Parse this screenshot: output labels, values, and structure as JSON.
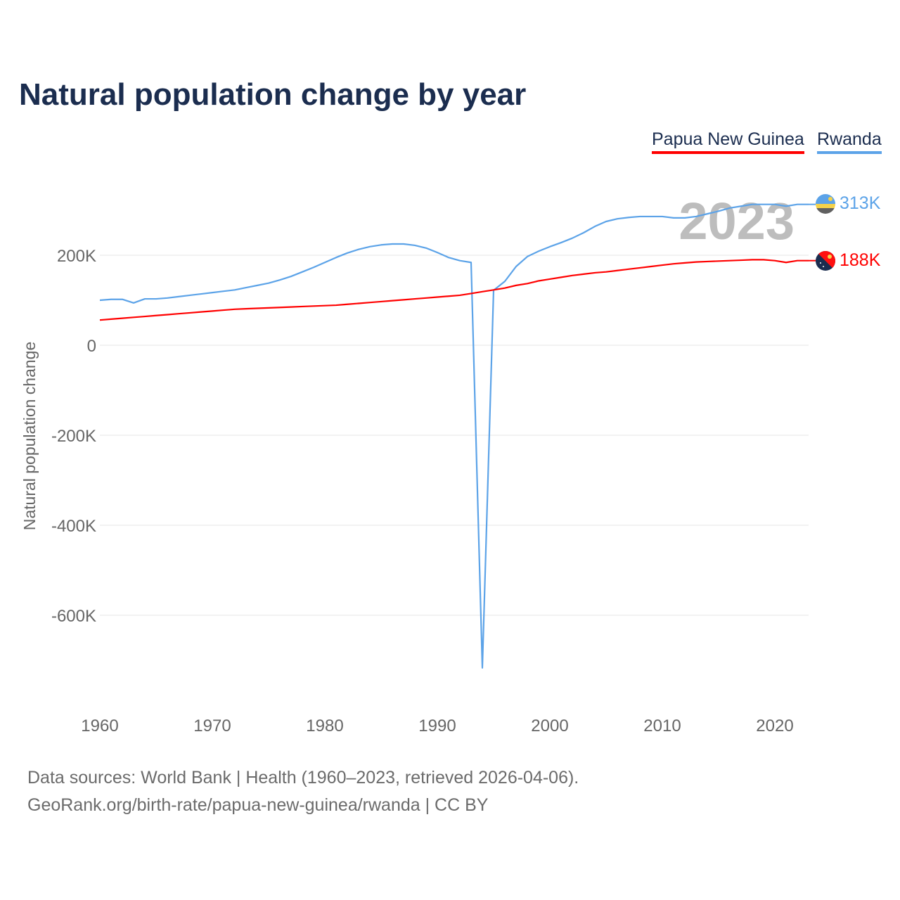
{
  "title": "Natural population change by year",
  "legend": [
    {
      "name": "Papua New Guinea",
      "color": "#ff0000"
    },
    {
      "name": "Rwanda",
      "color": "#5ca3e8"
    }
  ],
  "year_label": "2023",
  "end_labels": {
    "rwanda": "313K",
    "png": "188K"
  },
  "footer": {
    "line1": "Data sources: World Bank | Health (1960–2023, retrieved 2026-04-06).",
    "line2": "GeoRank.org/birth-rate/papua-new-guinea/rwanda | CC BY"
  },
  "chart_data": {
    "type": "line",
    "title": "Natural population change by year",
    "xlabel": "",
    "ylabel": "Natural population change",
    "xlim": [
      1960,
      2023
    ],
    "ylim": [
      -780000,
      330000
    ],
    "x_ticks": [
      1960,
      1970,
      1980,
      1990,
      2000,
      2010,
      2020
    ],
    "y_ticks": [
      {
        "v": 200000,
        "label": "200K"
      },
      {
        "v": 0,
        "label": "0"
      },
      {
        "v": -200000,
        "label": "-200K"
      },
      {
        "v": -400000,
        "label": "-400K"
      },
      {
        "v": -600000,
        "label": "-600K"
      }
    ],
    "x_start": 1960,
    "series": [
      {
        "name": "Rwanda",
        "color": "#5ca3e8",
        "values_k": [
          100,
          102,
          102,
          94,
          103,
          103,
          105,
          108,
          111,
          114,
          117,
          120,
          123,
          128,
          133,
          138,
          145,
          153,
          163,
          173,
          184,
          195,
          205,
          213,
          219,
          223,
          225,
          225,
          222,
          216,
          206,
          195,
          188,
          184,
          -717,
          122,
          142,
          175,
          197,
          209,
          219,
          228,
          238,
          250,
          264,
          275,
          281,
          284,
          286,
          286,
          286,
          283,
          283,
          286,
          292,
          298,
          305,
          309,
          313,
          313,
          313,
          309,
          313,
          313
        ]
      },
      {
        "name": "Papua New Guinea",
        "color": "#ff0000",
        "values_k": [
          56,
          58,
          60,
          62,
          64,
          66,
          68,
          70,
          72,
          74,
          76,
          78,
          80,
          81,
          82,
          83,
          84,
          85,
          86,
          87,
          88,
          89,
          91,
          93,
          95,
          97,
          99,
          101,
          103,
          105,
          107,
          109,
          111,
          115,
          119,
          123,
          127,
          133,
          137,
          143,
          147,
          151,
          155,
          158,
          161,
          163,
          166,
          169,
          172,
          175,
          178,
          181,
          183,
          185,
          186,
          187,
          188,
          189,
          190,
          190,
          188,
          184,
          188,
          188
        ]
      }
    ]
  }
}
